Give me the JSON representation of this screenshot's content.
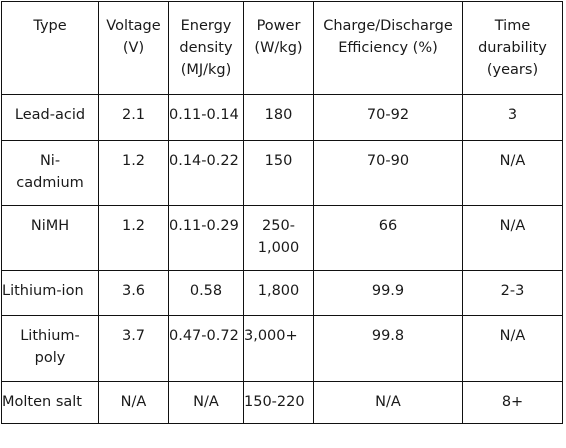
{
  "table": {
    "headers": [
      [
        "Type"
      ],
      [
        "Voltage",
        "(V)"
      ],
      [
        "Energy",
        "density",
        "(MJ/kg)"
      ],
      [
        "Power",
        "(W/kg)"
      ],
      [
        "Charge/Discharge",
        "Efficiency (%)"
      ],
      [
        "Time",
        "durability",
        "(years)"
      ]
    ],
    "rows": [
      [
        [
          "Lead-acid"
        ],
        [
          "2.1"
        ],
        [
          "0.11-0.14"
        ],
        [
          "180"
        ],
        [
          "70-92"
        ],
        [
          "3"
        ]
      ],
      [
        [
          "Ni-",
          "cadmium"
        ],
        [
          "1.2"
        ],
        [
          "0.14-0.22"
        ],
        [
          "150"
        ],
        [
          "70-90"
        ],
        [
          "N/A"
        ]
      ],
      [
        [
          "NiMH"
        ],
        [
          "1.2"
        ],
        [
          "0.11-0.29"
        ],
        [
          "250-",
          "1,000"
        ],
        [
          "66"
        ],
        [
          "N/A"
        ]
      ],
      [
        [
          "Lithium-ion"
        ],
        [
          "3.6"
        ],
        [
          "0.58"
        ],
        [
          "1,800"
        ],
        [
          "99.9"
        ],
        [
          "2-3"
        ]
      ],
      [
        [
          "Lithium-",
          "poly"
        ],
        [
          "3.7"
        ],
        [
          "0.47-0.72"
        ],
        [
          "3,000+"
        ],
        [
          "99.8"
        ],
        [
          "N/A"
        ]
      ],
      [
        [
          "Molten salt"
        ],
        [
          "N/A"
        ],
        [
          "N/A"
        ],
        [
          "150-220"
        ],
        [
          "N/A"
        ],
        [
          "8+"
        ]
      ]
    ]
  }
}
